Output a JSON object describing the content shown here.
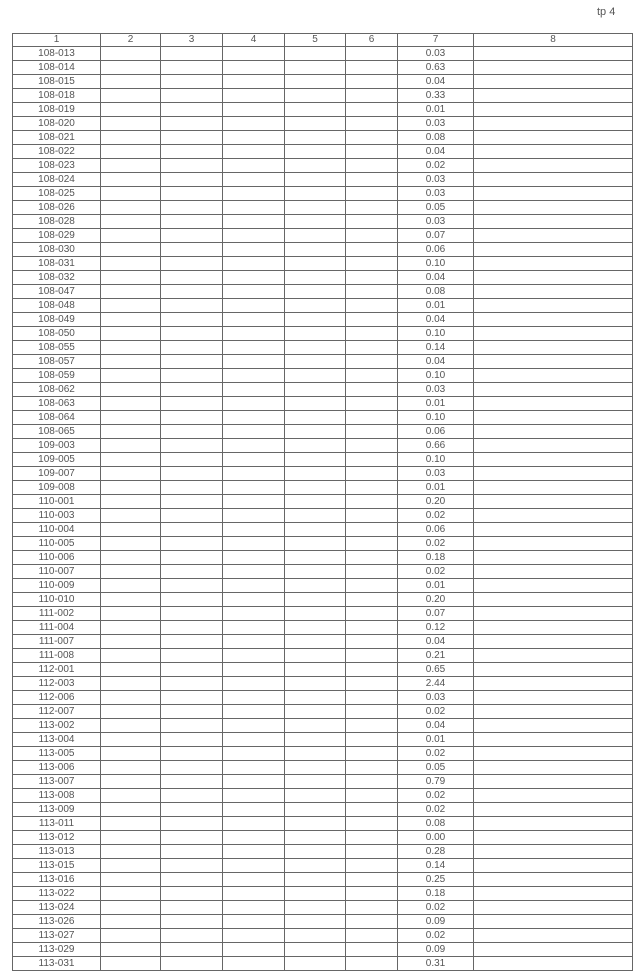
{
  "page_label": "tp 4",
  "columns": [
    "1",
    "2",
    "3",
    "4",
    "5",
    "6",
    "7",
    "8"
  ],
  "rows": [
    [
      "108-013",
      "0.03"
    ],
    [
      "108-014",
      "0.63"
    ],
    [
      "108-015",
      "0.04"
    ],
    [
      "108-018",
      "0.33"
    ],
    [
      "108-019",
      "0.01"
    ],
    [
      "108-020",
      "0.03"
    ],
    [
      "108-021",
      "0.08"
    ],
    [
      "108-022",
      "0.04"
    ],
    [
      "108-023",
      "0.02"
    ],
    [
      "108-024",
      "0.03"
    ],
    [
      "108-025",
      "0.03"
    ],
    [
      "108-026",
      "0.05"
    ],
    [
      "108-028",
      "0.03"
    ],
    [
      "108-029",
      "0.07"
    ],
    [
      "108-030",
      "0.06"
    ],
    [
      "108-031",
      "0.10"
    ],
    [
      "108-032",
      "0.04"
    ],
    [
      "108-047",
      "0.08"
    ],
    [
      "108-048",
      "0.01"
    ],
    [
      "108-049",
      "0.04"
    ],
    [
      "108-050",
      "0.10"
    ],
    [
      "108-055",
      "0.14"
    ],
    [
      "108-057",
      "0.04"
    ],
    [
      "108-059",
      "0.10"
    ],
    [
      "108-062",
      "0.03"
    ],
    [
      "108-063",
      "0.01"
    ],
    [
      "108-064",
      "0.10"
    ],
    [
      "108-065",
      "0.06"
    ],
    [
      "109-003",
      "0.66"
    ],
    [
      "109-005",
      "0.10"
    ],
    [
      "109-007",
      "0.03"
    ],
    [
      "109-008",
      "0.01"
    ],
    [
      "110-001",
      "0.20"
    ],
    [
      "110-003",
      "0.02"
    ],
    [
      "110-004",
      "0.06"
    ],
    [
      "110-005",
      "0.02"
    ],
    [
      "110-006",
      "0.18"
    ],
    [
      "110-007",
      "0.02"
    ],
    [
      "110-009",
      "0.01"
    ],
    [
      "110-010",
      "0.20"
    ],
    [
      "111-002",
      "0.07"
    ],
    [
      "111-004",
      "0.12"
    ],
    [
      "111-007",
      "0.04"
    ],
    [
      "111-008",
      "0.21"
    ],
    [
      "112-001",
      "0.65"
    ],
    [
      "112-003",
      "2.44"
    ],
    [
      "112-006",
      "0.03"
    ],
    [
      "112-007",
      "0.02"
    ],
    [
      "113-002",
      "0.04"
    ],
    [
      "113-004",
      "0.01"
    ],
    [
      "113-005",
      "0.02"
    ],
    [
      "113-006",
      "0.05"
    ],
    [
      "113-007",
      "0.79"
    ],
    [
      "113-008",
      "0.02"
    ],
    [
      "113-009",
      "0.02"
    ],
    [
      "113-011",
      "0.08"
    ],
    [
      "113-012",
      "0.00"
    ],
    [
      "113-013",
      "0.28"
    ],
    [
      "113-015",
      "0.14"
    ],
    [
      "113-016",
      "0.25"
    ],
    [
      "113-022",
      "0.18"
    ],
    [
      "113-024",
      "0.02"
    ],
    [
      "113-026",
      "0.09"
    ],
    [
      "113-027",
      "0.02"
    ],
    [
      "113-029",
      "0.09"
    ],
    [
      "113-031",
      "0.31"
    ]
  ]
}
